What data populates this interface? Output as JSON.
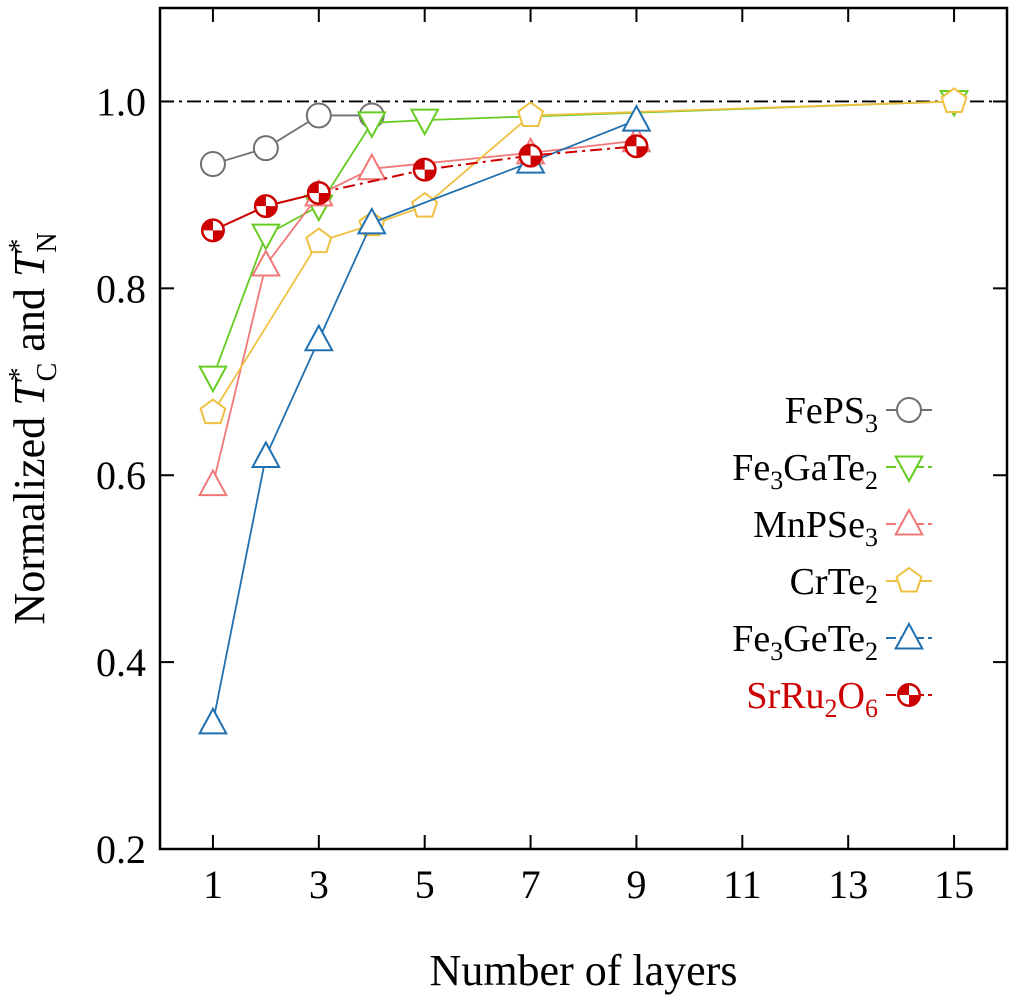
{
  "chart_data": {
    "type": "line",
    "xlabel": "Number of layers",
    "ylabel": {
      "main": "Normalized ",
      "t1_sym": "T",
      "t1_sub": "C",
      "t1_sup": "*",
      "joiner": " and ",
      "t2_sym": "T",
      "t2_sub": "N",
      "t2_sup": "*"
    },
    "xlim": [
      0,
      16
    ],
    "ylim": [
      0.2,
      1.1
    ],
    "x_ticks": [
      1,
      3,
      5,
      7,
      9,
      11,
      13,
      15
    ],
    "x_tick_labels": [
      "1",
      "3",
      "5",
      "7",
      "9",
      "11",
      "13",
      "15"
    ],
    "y_ticks": [
      0.2,
      0.4,
      0.6,
      0.8,
      1.0
    ],
    "y_tick_labels": [
      "0.2",
      "0.4",
      "0.6",
      "0.8",
      "1.0"
    ],
    "reference_line": {
      "y": 1.0,
      "style": "dash-dot",
      "color": "#000000"
    },
    "legend_position": "right-middle",
    "series": [
      {
        "name": "FePS3",
        "name_parts": [
          {
            "t": "FePS"
          },
          {
            "t": "3",
            "sub": true
          }
        ],
        "color": "#707070",
        "label_color": "#000000",
        "marker": "circle",
        "line": "solid",
        "x": [
          1,
          2,
          3,
          4
        ],
        "y": [
          0.933,
          0.95,
          0.985,
          0.985
        ]
      },
      {
        "name": "Fe3GaTe2",
        "name_parts": [
          {
            "t": "Fe"
          },
          {
            "t": "3",
            "sub": true
          },
          {
            "t": "GaTe"
          },
          {
            "t": "2",
            "sub": true
          }
        ],
        "color": "#66cc22",
        "label_color": "#000000",
        "marker": "triangle-down",
        "line": "solid",
        "x": [
          1,
          2,
          3,
          4,
          5,
          15
        ],
        "y": [
          0.705,
          0.857,
          0.888,
          0.977,
          0.98,
          1.0
        ]
      },
      {
        "name": "MnPSe3",
        "name_parts": [
          {
            "t": "MnPSe"
          },
          {
            "t": "3",
            "sub": true
          }
        ],
        "color": "#f07878",
        "label_color": "#000000",
        "marker": "triangle-up",
        "line": "solid",
        "x": [
          1,
          2,
          3,
          4,
          7,
          9
        ],
        "y": [
          0.59,
          0.825,
          0.9,
          0.928,
          0.945,
          0.958
        ]
      },
      {
        "name": "CrTe2",
        "name_parts": [
          {
            "t": "CrTe"
          },
          {
            "t": "2",
            "sub": true
          }
        ],
        "color": "#f0c040",
        "label_color": "#000000",
        "marker": "pentagon",
        "line": "solid",
        "x": [
          1,
          3,
          4,
          5,
          7,
          15
        ],
        "y": [
          0.667,
          0.85,
          0.868,
          0.888,
          0.985,
          1.0
        ]
      },
      {
        "name": "Fe3GeTe2",
        "name_parts": [
          {
            "t": "Fe"
          },
          {
            "t": "3",
            "sub": true
          },
          {
            "t": "GeTe"
          },
          {
            "t": "2",
            "sub": true
          }
        ],
        "color": "#2070b0",
        "label_color": "#000000",
        "marker": "triangle-up",
        "line": "solid",
        "x": [
          1,
          2,
          3,
          4,
          7,
          9
        ],
        "y": [
          0.335,
          0.62,
          0.745,
          0.87,
          0.935,
          0.98
        ]
      },
      {
        "name": "SrRu2O6",
        "name_parts": [
          {
            "t": "SrRu"
          },
          {
            "t": "2",
            "sub": true
          },
          {
            "t": "O"
          },
          {
            "t": "6",
            "sub": true
          }
        ],
        "color": "#cc0000",
        "label_color": "#cc0000",
        "marker": "quartered-circle",
        "line": "solid-then-dashdot",
        "x": [
          1,
          2,
          3,
          5,
          7,
          9
        ],
        "y": [
          0.862,
          0.888,
          0.902,
          0.927,
          0.942,
          0.952
        ]
      }
    ]
  }
}
